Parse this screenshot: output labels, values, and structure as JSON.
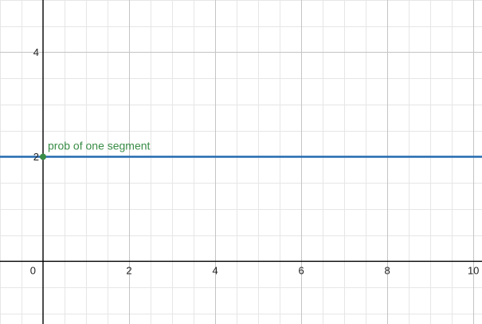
{
  "chart_data": {
    "type": "line",
    "title": "",
    "xlabel": "",
    "ylabel": "",
    "xlim": [
      -1,
      10.2
    ],
    "ylim": [
      -1.2,
      5
    ],
    "grid": true,
    "x_ticks": [
      "0",
      "2",
      "4",
      "6",
      "8",
      "10"
    ],
    "y_ticks": [
      "2",
      "4"
    ],
    "x_tick_values": [
      0,
      2,
      4,
      6,
      8,
      10
    ],
    "y_tick_values": [
      2,
      4
    ],
    "series": [
      {
        "color": "#2d70b3",
        "x": [
          -1,
          10.2
        ],
        "values": [
          2,
          2
        ]
      }
    ],
    "points": [
      {
        "x": 0,
        "y": 2,
        "label": "prob of one segment",
        "color": "#388c46"
      }
    ]
  }
}
